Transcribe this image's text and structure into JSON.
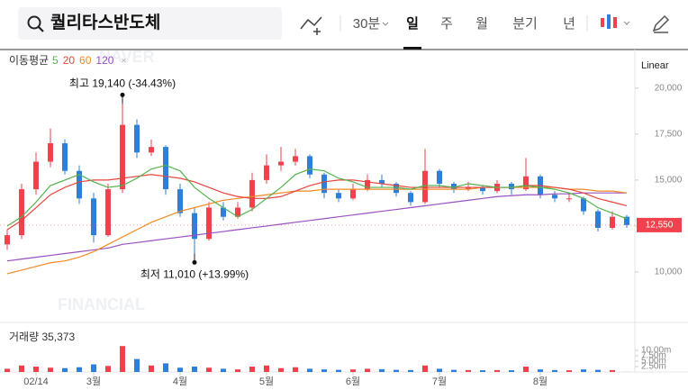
{
  "search": {
    "query": "퀄리타스반도체"
  },
  "toolbar": {
    "items": [
      "30분",
      "일",
      "주",
      "월",
      "분기",
      "년"
    ],
    "selected": 1
  },
  "chart_data": {
    "type": "candlestick",
    "scale_label": "Linear",
    "legend_title": "이동평균",
    "watermark": [
      "NAVER",
      "FINANCIAL"
    ],
    "categories": [
      null,
      null,
      "02/14",
      null,
      null,
      null,
      "3월",
      null,
      null,
      null,
      null,
      null,
      "4월",
      null,
      null,
      null,
      null,
      null,
      "5월",
      null,
      null,
      null,
      null,
      null,
      "6월",
      null,
      null,
      null,
      null,
      null,
      "7월",
      null,
      null,
      null,
      null,
      null,
      null,
      "8월",
      null,
      null,
      null,
      null,
      null,
      null
    ],
    "open": [
      11500,
      12000,
      14500,
      16000,
      17000,
      15500,
      14000,
      12000,
      14500,
      18000,
      16500,
      16800,
      14500,
      13200,
      11800,
      13500,
      13000,
      13500,
      15000,
      15800,
      16000,
      16300,
      15300,
      14300,
      14000,
      14500,
      15000,
      14800,
      14300,
      13800,
      15500,
      14800,
      14500,
      14600,
      14400,
      14800,
      14500,
      15200,
      14200,
      14000,
      14000,
      13300,
      12400,
      13000
    ],
    "high": [
      12300,
      14800,
      16500,
      17800,
      17200,
      15800,
      14300,
      14800,
      19140,
      18300,
      17200,
      16900,
      14800,
      13500,
      13800,
      13800,
      13800,
      15400,
      16400,
      16800,
      16700,
      16400,
      15400,
      14500,
      14800,
      15300,
      15300,
      14900,
      14400,
      16700,
      15600,
      14900,
      14900,
      14700,
      15000,
      14900,
      16200,
      15300,
      14400,
      14300,
      14100,
      13400,
      13300,
      13100
    ],
    "low": [
      11200,
      11800,
      14200,
      15700,
      15300,
      13700,
      11600,
      11900,
      14300,
      16200,
      16300,
      14200,
      13000,
      11010,
      11700,
      12800,
      12900,
      13300,
      14800,
      15500,
      15800,
      15100,
      14000,
      13800,
      13900,
      14400,
      14600,
      14100,
      13600,
      13700,
      14600,
      14300,
      14400,
      14200,
      14300,
      14200,
      14400,
      14000,
      13800,
      13800,
      13100,
      12200,
      12300,
      12400
    ],
    "close": [
      12000,
      14500,
      16000,
      17000,
      15500,
      14000,
      12000,
      14500,
      18000,
      16500,
      16800,
      14500,
      13200,
      11800,
      13500,
      13000,
      13500,
      15000,
      15800,
      16000,
      16300,
      15300,
      14300,
      14000,
      14500,
      15000,
      14800,
      14300,
      13800,
      15500,
      14800,
      14500,
      14600,
      14400,
      14800,
      14500,
      15200,
      14200,
      14000,
      14000,
      13300,
      12400,
      13000,
      12550
    ],
    "up_color": "#f0414c",
    "down_color": "#2f7fd8",
    "series": [
      {
        "name": "5",
        "color": "#53b24c",
        "values": [
          12500,
          13000,
          13800,
          14700,
          15000,
          15300,
          14900,
          14600,
          14700,
          15100,
          15600,
          15800,
          15500,
          14600,
          14000,
          13500,
          13000,
          13400,
          14000,
          14600,
          15300,
          15600,
          15500,
          15100,
          14900,
          14600,
          14600,
          14600,
          14500,
          14700,
          14700,
          14600,
          14800,
          14700,
          14600,
          14600,
          14700,
          14600,
          14500,
          14300,
          14000,
          13500,
          13200,
          12900
        ]
      },
      {
        "name": "20",
        "color": "#e5453c",
        "values": [
          12300,
          12800,
          13500,
          14200,
          14600,
          14900,
          15000,
          15000,
          15100,
          15200,
          15300,
          15200,
          15100,
          14900,
          14600,
          14300,
          14100,
          14000,
          14000,
          14100,
          14400,
          14700,
          14900,
          15000,
          15000,
          14900,
          14800,
          14700,
          14600,
          14600,
          14600,
          14600,
          14600,
          14600,
          14600,
          14600,
          14700,
          14700,
          14600,
          14500,
          14300,
          14000,
          13800,
          13600
        ]
      },
      {
        "name": "60",
        "color": "#f08a24",
        "values": [
          9900,
          10100,
          10300,
          10500,
          10600,
          10800,
          11100,
          11500,
          11900,
          12300,
          12700,
          13000,
          13300,
          13500,
          13700,
          13900,
          14000,
          14100,
          14200,
          14300,
          14400,
          14400,
          14500,
          14500,
          14500,
          14500,
          14500,
          14500,
          14500,
          14500,
          14500,
          14500,
          14500,
          14600,
          14600,
          14600,
          14600,
          14600,
          14600,
          14500,
          14500,
          14400,
          14400,
          14300
        ]
      },
      {
        "name": "120",
        "color": "#9b50c0",
        "values": [
          10600,
          10700,
          10800,
          10900,
          11000,
          11100,
          11200,
          11300,
          11500,
          11600,
          11700,
          11800,
          11900,
          12000,
          12100,
          12200,
          12300,
          12400,
          12500,
          12600,
          12700,
          12800,
          12900,
          13000,
          13100,
          13200,
          13300,
          13400,
          13500,
          13600,
          13700,
          13800,
          13900,
          14000,
          14100,
          14150,
          14200,
          14200,
          14250,
          14250,
          14300,
          14300,
          14300,
          14300
        ]
      }
    ],
    "ylim": [
      7400,
      22100
    ],
    "yticks": [
      {
        "value": 20000,
        "label": "20,000"
      },
      {
        "value": 17500,
        "label": "17,500"
      },
      {
        "value": 15000,
        "label": "15,000"
      },
      {
        "value": 12500,
        "label": "12,500"
      },
      {
        "value": 10000,
        "label": "10,000"
      }
    ],
    "current_price": {
      "value": 12550,
      "label": "12,550"
    },
    "annotations": [
      {
        "text": "최고 19,140 (-34.43%)",
        "index": 8,
        "value": 19140
      },
      {
        "text": "최저 11,010 (+13.99%)",
        "index": 13,
        "value": 11010
      }
    ],
    "volume": {
      "label": "거래량 35,373",
      "values": [
        1500000,
        3000000,
        2500000,
        2000000,
        1800000,
        2200000,
        3500000,
        2800000,
        12000000,
        6000000,
        3000000,
        4000000,
        2000000,
        2500000,
        2000000,
        1500000,
        1200000,
        2500000,
        3000000,
        1800000,
        2200000,
        1500000,
        1200000,
        1000000,
        1200000,
        1500000,
        1300000,
        1000000,
        900000,
        3000000,
        1500000,
        1000000,
        900000,
        800000,
        900000,
        800000,
        2500000,
        1200000,
        900000,
        800000,
        1200000,
        1000000,
        900000,
        35373
      ],
      "ylim": [
        0,
        20000000
      ],
      "yticks": [
        {
          "value": 10000000,
          "label": "10.00m"
        },
        {
          "value": 7500000,
          "label": "7.50m"
        },
        {
          "value": 5000000,
          "label": "5.00m"
        },
        {
          "value": 2500000,
          "label": "2.50m"
        }
      ]
    }
  }
}
